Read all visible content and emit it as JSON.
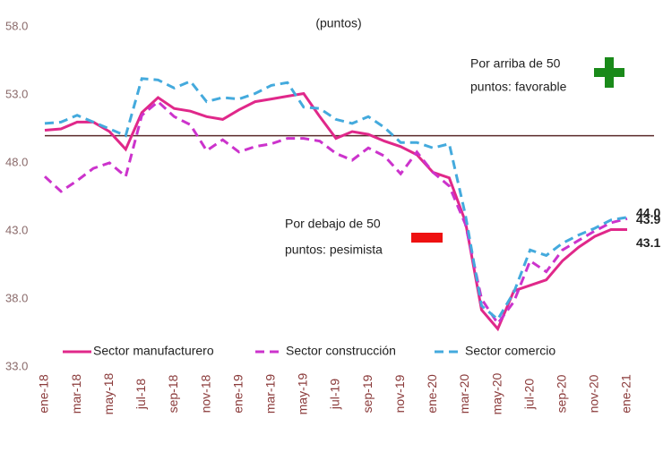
{
  "chart_data": {
    "type": "line",
    "subtitle": "(puntos)",
    "categories": [
      "ene-18",
      null,
      "mar-18",
      null,
      "may-18",
      null,
      "jul-18",
      null,
      "sep-18",
      null,
      "nov-18",
      null,
      "ene-19",
      null,
      "mar-19",
      null,
      "may-19",
      null,
      "jul-19",
      null,
      "sep-19",
      null,
      "nov-19",
      null,
      "ene-20",
      null,
      "mar-20",
      null,
      "may-20",
      null,
      "jul-20",
      null,
      "sep-20",
      null,
      "nov-20",
      null,
      "ene-21"
    ],
    "series": [
      {
        "name": "Sector manufacturero",
        "color": "#e0288a",
        "dash": "solid",
        "values": [
          50.4,
          50.5,
          51.0,
          51.0,
          50.3,
          49.0,
          51.7,
          52.8,
          52.0,
          51.8,
          51.4,
          51.2,
          51.9,
          52.5,
          52.7,
          52.9,
          53.1,
          51.4,
          49.8,
          50.3,
          50.1,
          49.6,
          49.2,
          48.6,
          47.3,
          46.9,
          43.7,
          37.2,
          35.8,
          38.6,
          39.0,
          39.4,
          40.8,
          41.8,
          42.6,
          43.1,
          43.1
        ],
        "value_labels": [
          null,
          null,
          null,
          null,
          null,
          null,
          null,
          null,
          null,
          null,
          null,
          null,
          null,
          null,
          null,
          null,
          null,
          null,
          null,
          null,
          null,
          null,
          null,
          null,
          null,
          null,
          null,
          null,
          null,
          null,
          null,
          null,
          null,
          null,
          null,
          null,
          "43.1"
        ]
      },
      {
        "name": "Sector construcción",
        "color": "#cc33cc",
        "dash": "dash",
        "values": [
          47.0,
          45.9,
          46.7,
          47.6,
          48.0,
          47.0,
          51.5,
          52.5,
          51.4,
          50.8,
          48.9,
          49.7,
          48.8,
          49.2,
          49.4,
          49.8,
          49.8,
          49.6,
          48.7,
          48.2,
          49.1,
          48.5,
          47.2,
          48.8,
          47.3,
          46.3,
          43.5,
          38.0,
          36.2,
          37.8,
          40.8,
          40.0,
          41.6,
          42.3,
          43.0,
          43.6,
          43.9
        ],
        "value_labels": [
          null,
          null,
          null,
          null,
          null,
          null,
          null,
          null,
          null,
          null,
          null,
          null,
          null,
          null,
          null,
          null,
          null,
          null,
          null,
          null,
          null,
          null,
          null,
          null,
          null,
          null,
          null,
          null,
          null,
          null,
          null,
          null,
          null,
          null,
          null,
          null,
          "43.9"
        ]
      },
      {
        "name": "Sector comercio",
        "color": "#44aadd",
        "dash": "dash",
        "values": [
          50.9,
          51.0,
          51.5,
          51.0,
          50.5,
          50.0,
          54.2,
          54.1,
          53.5,
          54.0,
          52.5,
          52.8,
          52.7,
          53.1,
          53.7,
          53.9,
          52.1,
          52.0,
          51.2,
          50.9,
          51.4,
          50.6,
          49.5,
          49.5,
          49.1,
          49.4,
          44.2,
          37.5,
          36.5,
          38.5,
          41.6,
          41.2,
          42.1,
          42.7,
          43.2,
          43.8,
          44.0
        ],
        "value_labels": [
          null,
          null,
          null,
          null,
          null,
          null,
          null,
          null,
          null,
          null,
          null,
          null,
          null,
          null,
          null,
          null,
          null,
          null,
          null,
          null,
          null,
          null,
          null,
          null,
          null,
          null,
          null,
          null,
          null,
          null,
          null,
          null,
          null,
          null,
          null,
          null,
          "44.0"
        ]
      }
    ],
    "ylim": [
      33,
      58
    ],
    "yticks": [
      {
        "value": 33,
        "label": "33.0"
      },
      {
        "value": 38,
        "label": "38.0"
      },
      {
        "value": 43,
        "label": "43.0"
      },
      {
        "value": 48,
        "label": "48.0"
      },
      {
        "value": 53,
        "label": "53.0"
      },
      {
        "value": 58,
        "label": "58.0"
      }
    ],
    "reference_line": 50,
    "annotations": [
      "Por arriba de 50",
      "puntos: favorable",
      "Por debajo de 50",
      "puntos: pesimista"
    ]
  }
}
